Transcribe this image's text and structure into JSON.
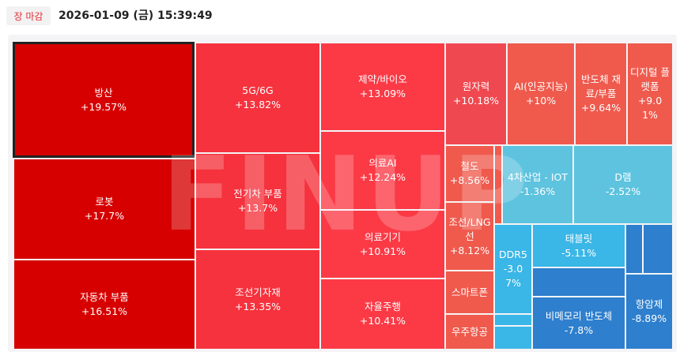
{
  "header": {
    "status": "장 마감",
    "timestamp": "2026-01-09 (금) 15:39:49"
  },
  "watermark": "FINUP",
  "tiles": [
    {
      "label": "방산",
      "change": "+19.57%"
    },
    {
      "label": "로봇",
      "change": "+17.7%"
    },
    {
      "label": "자동차 부품",
      "change": "+16.51%"
    },
    {
      "label": "5G/6G",
      "change": "+13.82%"
    },
    {
      "label": "전기차 부품",
      "change": "+13.7%"
    },
    {
      "label": "조선기자재",
      "change": "+13.35%"
    },
    {
      "label": "제약/바이오",
      "change": "+13.09%"
    },
    {
      "label": "의료AI",
      "change": "+12.24%"
    },
    {
      "label": "의료기기",
      "change": "+10.91%"
    },
    {
      "label": "자율주행",
      "change": "+10.41%"
    },
    {
      "label": "원자력",
      "change": "+10.18%"
    },
    {
      "label": "AI(인공지능)",
      "change": "+10%"
    },
    {
      "label": "반도체 재료/부품",
      "change": "+9.64%"
    },
    {
      "label": "디지털 플랫폼",
      "change": "+9.01%"
    },
    {
      "label": "철도",
      "change": "+8.56%"
    },
    {
      "label": "조선/LNG선",
      "change": "+8.12%"
    },
    {
      "label": "스마트폰",
      "change": null
    },
    {
      "label": "우주항공",
      "change": null
    },
    {
      "label": "4차산업 - IOT",
      "change": "-1.36%"
    },
    {
      "label": "D램",
      "change": "-2.52%"
    },
    {
      "label": "DDR5",
      "change": "-3.07%"
    },
    {
      "label": "태블릿",
      "change": "-5.11%"
    },
    {
      "label": "비메모리 반도체",
      "change": "-7.8%"
    },
    {
      "label": "항암제",
      "change": "-8.89%"
    }
  ]
}
